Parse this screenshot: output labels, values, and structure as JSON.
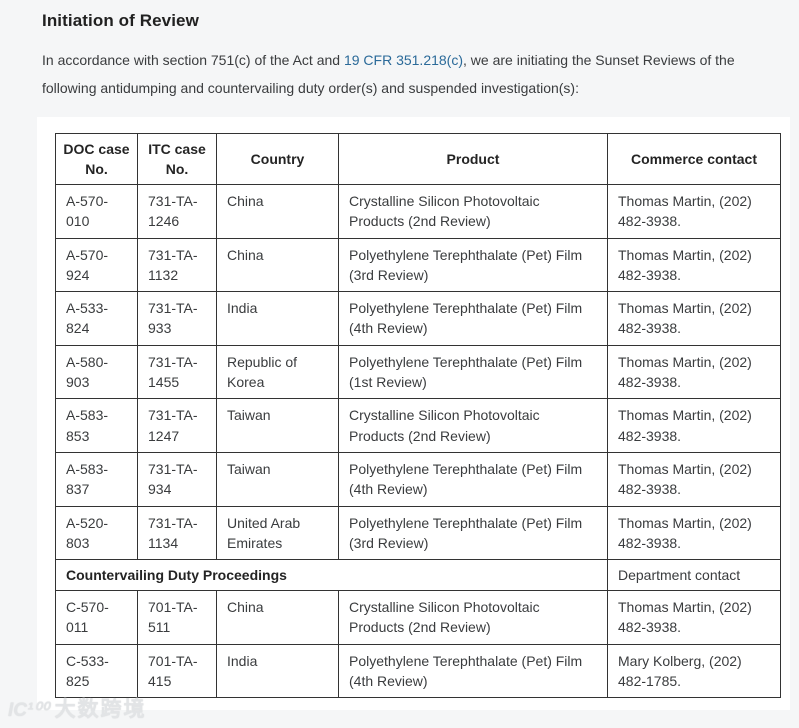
{
  "page": {
    "title": "Initiation of Review",
    "intro": {
      "before_link": "In accordance with section 751(c) of the Act and ",
      "link_text": "19 CFR 351.218(c)",
      "after_link": ", we are initiating the Sunset Reviews of the following antidumping and countervailing duty order(s) and suspended investigation(s):"
    }
  },
  "table": {
    "headers": [
      "DOC case No.",
      "ITC case No.",
      "Country",
      "Product",
      "Commerce contact"
    ],
    "ad_rows": [
      [
        "A-570-010",
        "731-TA-1246",
        "China",
        "Crystalline Silicon Photovoltaic Products (2nd Review)",
        "Thomas Martin, (202) 482-3938."
      ],
      [
        "A-570-924",
        "731-TA-1132",
        "China",
        "Polyethylene Terephthalate (Pet) Film (3rd Review)",
        "Thomas Martin, (202) 482-3938."
      ],
      [
        "A-533-824",
        "731-TA-933",
        "India",
        "Polyethylene Terephthalate (Pet) Film (4th Review)",
        "Thomas Martin, (202) 482-3938."
      ],
      [
        "A-580-903",
        "731-TA-1455",
        "Republic of Korea",
        "Polyethylene Terephthalate (Pet) Film (1st Review)",
        "Thomas Martin, (202) 482-3938."
      ],
      [
        "A-583-853",
        "731-TA-1247",
        "Taiwan",
        "Crystalline Silicon Photovoltaic Products (2nd Review)",
        "Thomas Martin, (202) 482-3938."
      ],
      [
        "A-583-837",
        "731-TA-934",
        "Taiwan",
        "Polyethylene Terephthalate (Pet) Film (4th Review)",
        "Thomas Martin, (202) 482-3938."
      ],
      [
        "A-520-803",
        "731-TA-1134",
        "United Arab Emirates",
        "Polyethylene Terephthalate (Pet) Film (3rd Review)",
        "Thomas Martin, (202) 482-3938."
      ]
    ],
    "section": {
      "label": "Countervailing Duty Proceedings",
      "contact_header": "Department contact"
    },
    "cvd_rows": [
      [
        "C-570-011",
        "701-TA-511",
        "China",
        "Crystalline Silicon Photovoltaic Products (2nd Review)",
        "Thomas Martin, (202) 482-3938."
      ],
      [
        "C-533-825",
        "701-TA-415",
        "India",
        "Polyethylene Terephthalate (Pet) Film (4th Review)",
        "Mary Kolberg, (202) 482-1785."
      ]
    ]
  },
  "watermark": {
    "logo": "IC¹⁰⁰",
    "text": "大数跨境"
  },
  "colors": {
    "link": "#2b6a99",
    "table_border": "#333333",
    "text": "#3a3c3e",
    "heading": "#212121",
    "page_bg": "#f5f6f7",
    "card_bg": "#ffffff",
    "watermark": "#e2e4e6"
  }
}
